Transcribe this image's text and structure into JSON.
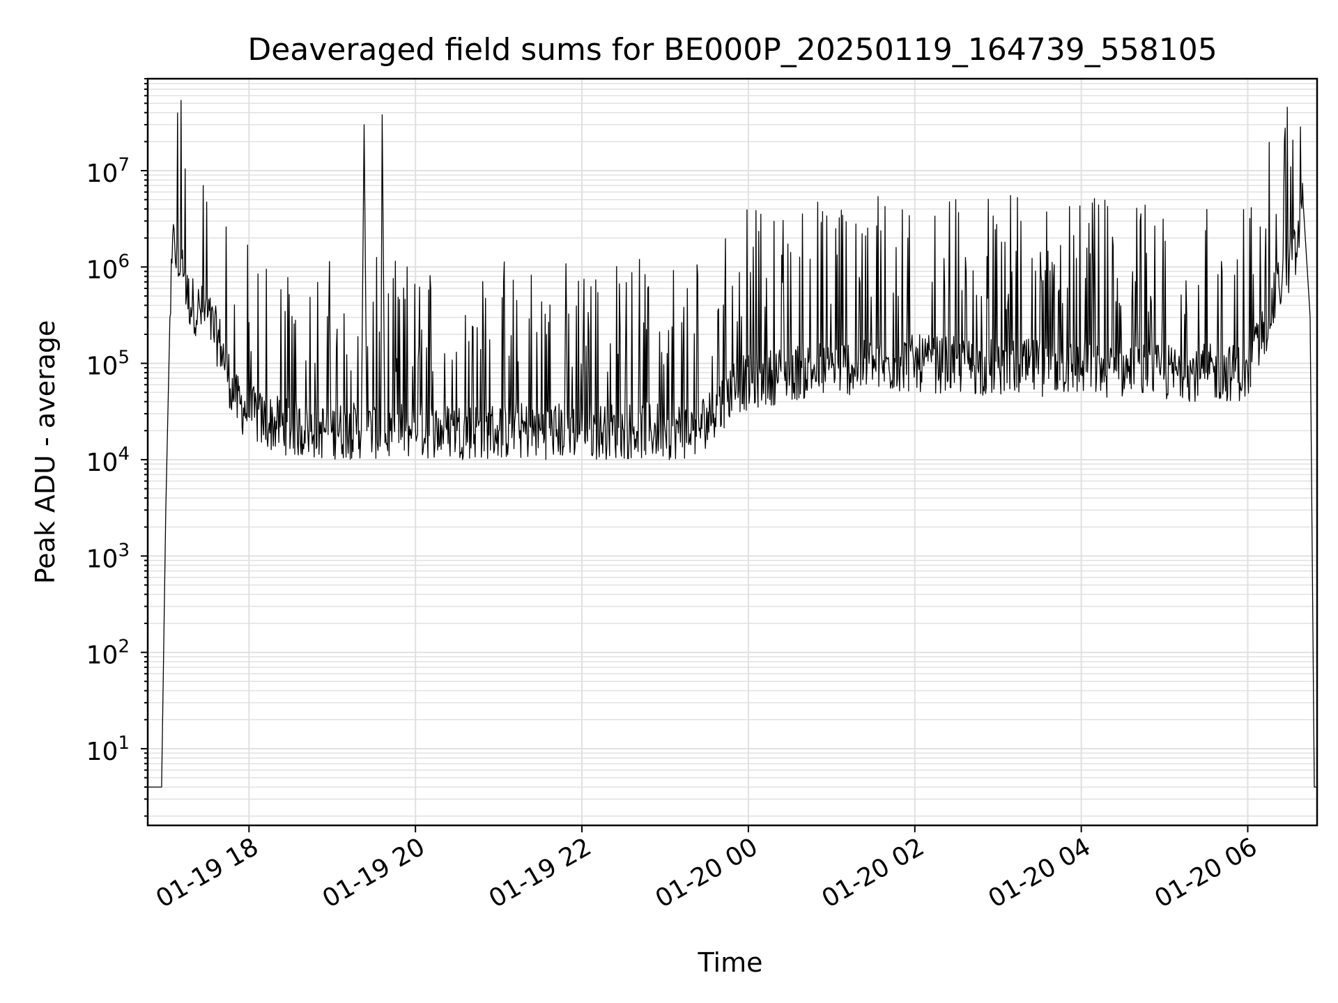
{
  "chart_data": {
    "type": "line",
    "title": "Deaveraged field sums for BE000P_20250119_164739_558105",
    "xlabel": "Time",
    "ylabel": "Peak ADU - average",
    "yscale": "log",
    "ylim": [
      1.6,
      90000000
    ],
    "xlim": [
      "01-19 16:47",
      "01-20 06:50"
    ],
    "grid": true,
    "line_color": "#000000",
    "grid_color": "#e0e0e0",
    "x_ticks": [
      {
        "t": "01-19 18:00",
        "label": "01-19 18"
      },
      {
        "t": "01-19 20:00",
        "label": "01-19 20"
      },
      {
        "t": "01-19 22:00",
        "label": "01-19 22"
      },
      {
        "t": "01-20 00:00",
        "label": "01-20 00"
      },
      {
        "t": "01-20 02:00",
        "label": "01-20 02"
      },
      {
        "t": "01-20 04:00",
        "label": "01-20 04"
      },
      {
        "t": "01-20 06:00",
        "label": "01-20 06"
      }
    ],
    "y_ticks": [
      {
        "value": 10,
        "base": "10",
        "exp": "1"
      },
      {
        "value": 100,
        "base": "10",
        "exp": "2"
      },
      {
        "value": 1000,
        "base": "10",
        "exp": "3"
      },
      {
        "value": 10000,
        "base": "10",
        "exp": "4"
      },
      {
        "value": 100000,
        "base": "10",
        "exp": "5"
      },
      {
        "value": 1000000,
        "base": "10",
        "exp": "6"
      },
      {
        "value": 10000000,
        "base": "10",
        "exp": "7"
      }
    ],
    "series": [
      {
        "x": [
          "01-19 16:47",
          "01-19 16:57",
          "01-19 17:00",
          "01-19 17:03",
          "01-19 17:06",
          "01-19 17:09",
          "01-19 17:12",
          "01-19 17:15",
          "01-19 17:20",
          "01-19 17:30",
          "01-19 17:40",
          "01-19 17:50",
          "01-19 18:10",
          "01-19 18:40",
          "01-19 19:00",
          "01-19 19:21",
          "01-19 19:23",
          "01-19 19:25",
          "01-19 19:35",
          "01-19 19:36",
          "01-19 19:38",
          "01-19 19:42",
          "01-19 20:00",
          "01-19 20:30",
          "01-19 21:00",
          "01-19 21:30",
          "01-19 22:00",
          "01-19 22:30",
          "01-19 23:00",
          "01-19 23:20",
          "01-19 23:35",
          "01-19 23:50",
          "01-20 00:30",
          "01-20 01:00",
          "01-20 02:00",
          "01-20 03:00",
          "01-20 04:00",
          "01-20 05:00",
          "01-20 05:30",
          "01-20 06:00",
          "01-20 06:15",
          "01-20 06:25",
          "01-20 06:35",
          "01-20 06:40",
          "01-20 06:45",
          "01-20 06:48",
          "01-20 06:50"
        ],
        "values": [
          4,
          4,
          3000,
          300000,
          2500000,
          800000,
          1500000,
          500000,
          400000,
          300000,
          150000,
          40000,
          25000,
          20000,
          20000,
          20000,
          30000000,
          20000,
          20000,
          38000000,
          15000,
          20000,
          20000,
          20000,
          20000,
          20000,
          20000,
          20000,
          20000,
          20000,
          30000,
          60000,
          80000,
          90000,
          100000,
          90000,
          90000,
          80000,
          80000,
          80000,
          300000,
          800000,
          1400000,
          4500000,
          300000,
          4,
          4
        ]
      }
    ]
  }
}
